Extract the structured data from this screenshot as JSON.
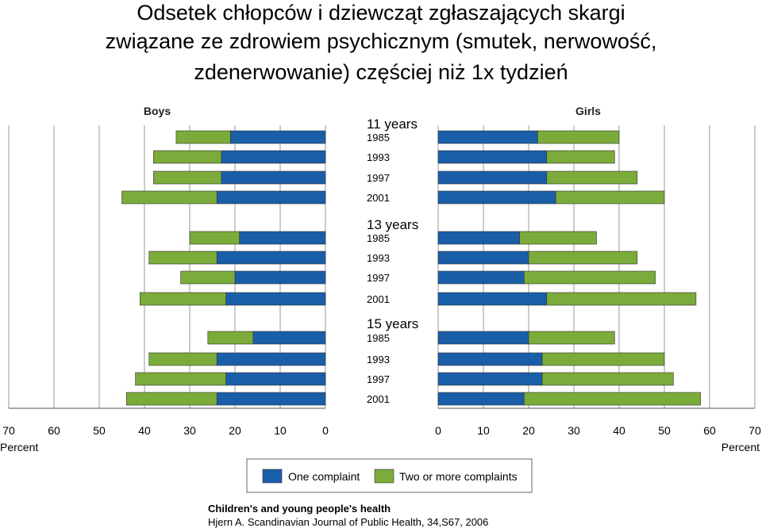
{
  "title": {
    "line1": "Odsetek chłopców i dziewcząt zgłaszających skargi",
    "line2": "związane ze zdrowiem psychicznym (smutek, nerwowość,",
    "line3": "zdenerwowanie) częściej niż 1x tydzień"
  },
  "chart_data": {
    "type": "bar",
    "orientation": "horizontal",
    "stacked": true,
    "panels": [
      "Boys",
      "Girls"
    ],
    "groups": [
      {
        "label": "11 years",
        "years": [
          "1985",
          "1993",
          "1997",
          "2001"
        ]
      },
      {
        "label": "13 years",
        "years": [
          "1985",
          "1993",
          "1997",
          "2001"
        ]
      },
      {
        "label": "15 years",
        "years": [
          "1985",
          "1993",
          "1997",
          "2001"
        ]
      }
    ],
    "series": [
      {
        "name": "One complaint",
        "color": "#1a5ea8",
        "boys": [
          21,
          23,
          23,
          24,
          19,
          24,
          20,
          22,
          16,
          24,
          22,
          24
        ],
        "girls": [
          22,
          24,
          24,
          26,
          18,
          20,
          19,
          24,
          20,
          23,
          23,
          19
        ]
      },
      {
        "name": "Two or more complaints",
        "color": "#7bab3a",
        "boys": [
          12,
          15,
          15,
          21,
          11,
          15,
          12,
          19,
          10,
          15,
          20,
          20
        ],
        "girls": [
          18,
          15,
          20,
          24,
          17,
          24,
          29,
          33,
          19,
          27,
          29,
          39
        ]
      }
    ],
    "xlim": [
      0,
      70
    ],
    "xticks": [
      "0",
      "10",
      "20",
      "30",
      "40",
      "50",
      "60",
      "70"
    ],
    "xlabel": "Percent",
    "grid": true,
    "legend": "bottom-center"
  },
  "source": {
    "line1": "Children's and young people's health",
    "line2": "Hjern A. Scandinavian Journal of Public Health, 34,S67, 2006"
  }
}
